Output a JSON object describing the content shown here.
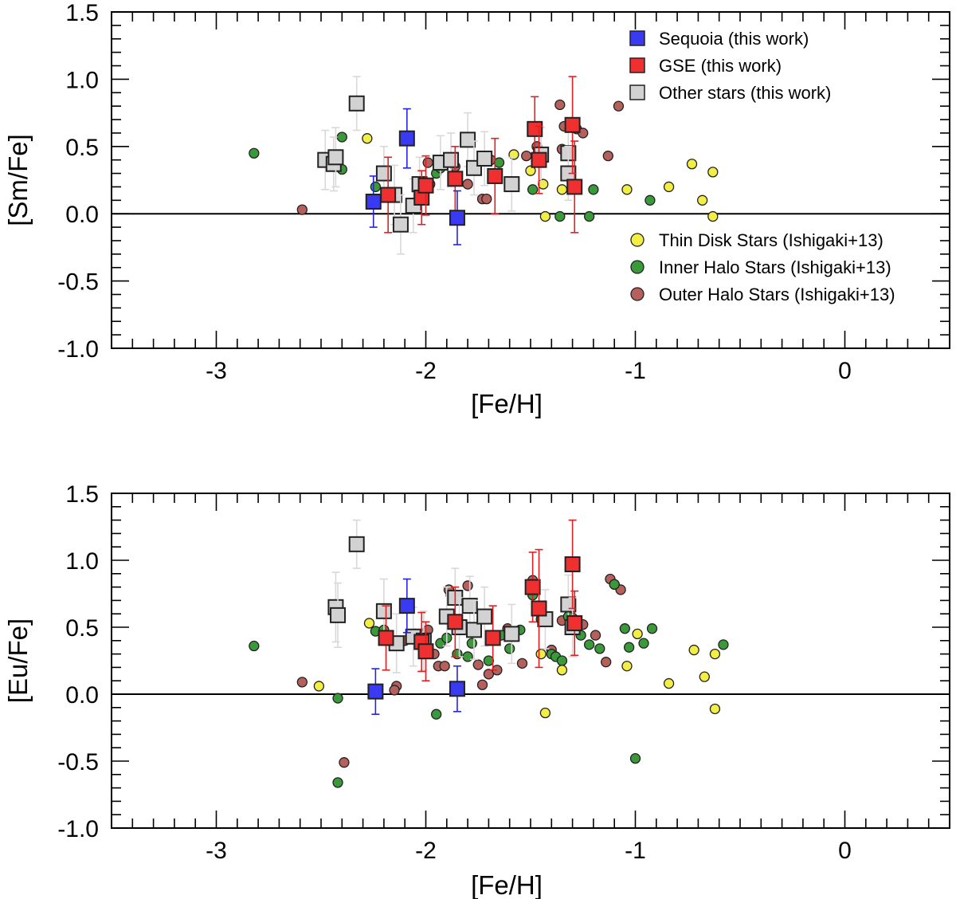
{
  "chart_data": [
    {
      "type": "scatter",
      "xlabel": "[Fe/H]",
      "ylabel": "[Sm/Fe]",
      "xlim": [
        -3.5,
        0.5
      ],
      "ylim": [
        -1.0,
        1.5
      ],
      "xticks": [
        {
          "value": -3,
          "label": "-3"
        },
        {
          "value": -2,
          "label": "-2"
        },
        {
          "value": -1,
          "label": "-1"
        },
        {
          "value": 0,
          "label": "0"
        }
      ],
      "yticks": [
        {
          "value": 1.5,
          "label": "1.5"
        },
        {
          "value": 1.0,
          "label": "1.0"
        },
        {
          "value": 0.5,
          "label": "0.5"
        },
        {
          "value": 0.0,
          "label": "0.0"
        },
        {
          "value": -0.5,
          "label": "-0.5"
        },
        {
          "value": -1.0,
          "label": "-1.0"
        }
      ],
      "reference_line_y": 0.0,
      "legend_upper": {
        "position": "top-right",
        "series": [
          "Sequoia",
          "GSE",
          "Other"
        ]
      },
      "legend_lower": {
        "position": "center-right",
        "series": [
          "Thin",
          "Inner",
          "Outer"
        ]
      },
      "series": [
        {
          "key": "Outer",
          "label": "Outer Halo Stars (Ishigaki+13)",
          "color": "#b5605c",
          "marker": "circle",
          "points": [
            [
              -2.59,
              0.03
            ],
            [
              -1.99,
              0.38
            ],
            [
              -1.98,
              0.22
            ],
            [
              -1.86,
              0.35
            ],
            [
              -1.69,
              0.4
            ],
            [
              -1.52,
              0.43
            ],
            [
              -1.47,
              0.5
            ],
            [
              -1.36,
              0.81
            ],
            [
              -1.35,
              0.48
            ],
            [
              -1.34,
              0.65
            ],
            [
              -1.32,
              0.44
            ],
            [
              -1.28,
              0.63
            ],
            [
              -1.25,
              0.6
            ],
            [
              -1.13,
              0.43
            ],
            [
              -1.08,
              0.8
            ],
            [
              -1.8,
              0.22
            ],
            [
              -1.73,
              0.11
            ],
            [
              -1.71,
              0.11
            ],
            [
              -2.03,
              0.2
            ]
          ]
        },
        {
          "key": "Inner",
          "label": "Inner Halo Stars (Ishigaki+13)",
          "color": "#3a9a3a",
          "marker": "circle",
          "points": [
            [
              -2.82,
              0.45
            ],
            [
              -2.4,
              0.57
            ],
            [
              -2.4,
              0.33
            ],
            [
              -2.24,
              0.2
            ],
            [
              -1.95,
              0.3
            ],
            [
              -1.93,
              0.34
            ],
            [
              -1.65,
              0.38
            ],
            [
              -1.49,
              0.18
            ],
            [
              -1.36,
              -0.02
            ],
            [
              -1.2,
              0.18
            ],
            [
              -1.22,
              -0.02
            ],
            [
              -0.93,
              0.1
            ],
            [
              -1.85,
              0.27
            ],
            [
              -2.04,
              0.17
            ]
          ]
        },
        {
          "key": "Thin",
          "label": "Thin Disk Stars (Ishigaki+13)",
          "color": "#f2ee44",
          "marker": "circle",
          "points": [
            [
              -2.28,
              0.56
            ],
            [
              -1.58,
              0.44
            ],
            [
              -1.5,
              0.32
            ],
            [
              -1.44,
              0.22
            ],
            [
              -1.43,
              -0.02
            ],
            [
              -1.35,
              0.18
            ],
            [
              -1.04,
              0.18
            ],
            [
              -0.84,
              0.2
            ],
            [
              -0.73,
              0.37
            ],
            [
              -0.68,
              0.1
            ],
            [
              -0.63,
              0.31
            ],
            [
              -0.63,
              -0.02
            ]
          ]
        },
        {
          "key": "Other",
          "label": "Other stars (this work)",
          "color": "#d2d2d2",
          "marker": "square",
          "errcolor": "#d8d8d8",
          "points": [
            [
              -2.33,
              0.82,
              0.2
            ],
            [
              -2.48,
              0.4,
              0.22
            ],
            [
              -2.44,
              0.37,
              0.2
            ],
            [
              -2.43,
              0.42,
              0.22
            ],
            [
              -2.2,
              0.3,
              0.2
            ],
            [
              -2.15,
              0.14,
              0.22
            ],
            [
              -2.12,
              -0.08,
              0.22
            ],
            [
              -2.06,
              0.06,
              0.2
            ],
            [
              -2.03,
              0.22,
              0.2
            ],
            [
              -1.93,
              0.38,
              0.2
            ],
            [
              -1.88,
              0.4,
              0.2
            ],
            [
              -1.8,
              0.55,
              0.2
            ],
            [
              -1.77,
              0.34,
              0.2
            ],
            [
              -1.72,
              0.41,
              0.2
            ],
            [
              -1.59,
              0.22,
              0.2
            ],
            [
              -1.45,
              0.44,
              0.2
            ],
            [
              -1.32,
              0.45,
              0.2
            ],
            [
              -1.32,
              0.3,
              0.2
            ]
          ]
        },
        {
          "key": "GSE",
          "label": "GSE (this work)",
          "color": "#f03030",
          "marker": "square",
          "errcolor": "#e02020",
          "points": [
            [
              -2.18,
              0.14,
              0.28
            ],
            [
              -2.02,
              0.12,
              0.2
            ],
            [
              -2.0,
              0.21,
              0.22
            ],
            [
              -1.86,
              0.26,
              0.24
            ],
            [
              -1.67,
              0.28,
              0.28
            ],
            [
              -1.48,
              0.63,
              0.24
            ],
            [
              -1.46,
              0.4,
              0.25
            ],
            [
              -1.3,
              0.66,
              0.36
            ],
            [
              -1.29,
              0.2,
              0.34
            ]
          ]
        },
        {
          "key": "Sequoia",
          "label": "Sequoia (this work)",
          "color": "#3a3af2",
          "marker": "square",
          "errcolor": "#2424e0",
          "points": [
            [
              -2.25,
              0.09,
              0.19
            ],
            [
              -2.09,
              0.56,
              0.22
            ],
            [
              -1.85,
              -0.03,
              0.2
            ]
          ]
        }
      ]
    },
    {
      "type": "scatter",
      "xlabel": "[Fe/H]",
      "ylabel": "[Eu/Fe]",
      "xlim": [
        -3.5,
        0.5
      ],
      "ylim": [
        -1.0,
        1.5
      ],
      "xticks": [
        {
          "value": -3,
          "label": "-3"
        },
        {
          "value": -2,
          "label": "-2"
        },
        {
          "value": -1,
          "label": "-1"
        },
        {
          "value": 0,
          "label": "0"
        }
      ],
      "yticks": [
        {
          "value": 1.5,
          "label": "1.5"
        },
        {
          "value": 1.0,
          "label": "1.0"
        },
        {
          "value": 0.5,
          "label": "0.5"
        },
        {
          "value": 0.0,
          "label": "0.0"
        },
        {
          "value": -0.5,
          "label": "-0.5"
        },
        {
          "value": -1.0,
          "label": "-1.0"
        }
      ],
      "reference_line_y": 0.0,
      "series": [
        {
          "key": "Outer",
          "label": "Outer Halo Stars (Ishigaki+13)",
          "color": "#b5605c",
          "marker": "circle",
          "points": [
            [
              -2.59,
              0.09
            ],
            [
              -2.39,
              -0.51
            ],
            [
              -2.14,
              0.06
            ],
            [
              -2.15,
              0.03
            ],
            [
              -1.99,
              0.48
            ],
            [
              -1.96,
              0.3
            ],
            [
              -1.94,
              0.21
            ],
            [
              -1.91,
              0.21
            ],
            [
              -1.89,
              0.78
            ],
            [
              -1.88,
              0.74
            ],
            [
              -1.8,
              0.81
            ],
            [
              -1.75,
              0.22
            ],
            [
              -1.73,
              0.07
            ],
            [
              -1.7,
              0.15
            ],
            [
              -1.66,
              0.18
            ],
            [
              -1.61,
              0.49
            ],
            [
              -1.58,
              0.46
            ],
            [
              -1.54,
              0.23
            ],
            [
              -1.49,
              0.85
            ],
            [
              -1.4,
              0.33
            ],
            [
              -1.35,
              0.55
            ],
            [
              -1.33,
              0.66
            ],
            [
              -1.3,
              0.57
            ],
            [
              -1.25,
              0.52
            ],
            [
              -1.19,
              0.44
            ],
            [
              -1.14,
              0.24
            ],
            [
              -1.12,
              0.86
            ],
            [
              -1.1,
              0.82
            ],
            [
              -1.07,
              0.78
            ],
            [
              -2.1,
              0.4
            ],
            [
              -2.05,
              0.45
            ]
          ]
        },
        {
          "key": "Inner",
          "label": "Inner Halo Stars (Ishigaki+13)",
          "color": "#3a9a3a",
          "marker": "circle",
          "points": [
            [
              -2.82,
              0.36
            ],
            [
              -2.42,
              -0.03
            ],
            [
              -2.42,
              -0.66
            ],
            [
              -2.24,
              0.47
            ],
            [
              -2.2,
              0.48
            ],
            [
              -2.18,
              0.4
            ],
            [
              -1.95,
              -0.15
            ],
            [
              -1.93,
              0.38
            ],
            [
              -1.9,
              0.42
            ],
            [
              -1.8,
              0.28
            ],
            [
              -1.78,
              0.38
            ],
            [
              -1.64,
              0.44
            ],
            [
              -1.6,
              0.34
            ],
            [
              -1.55,
              0.48
            ],
            [
              -1.49,
              0.74
            ],
            [
              -1.45,
              0.56
            ],
            [
              -1.4,
              0.3
            ],
            [
              -1.38,
              0.28
            ],
            [
              -1.35,
              0.25
            ],
            [
              -1.32,
              0.58
            ],
            [
              -1.26,
              0.44
            ],
            [
              -1.22,
              0.37
            ],
            [
              -1.17,
              0.34
            ],
            [
              -1.1,
              0.82
            ],
            [
              -1.05,
              0.49
            ],
            [
              -1.03,
              0.35
            ],
            [
              -0.96,
              0.38
            ],
            [
              -0.92,
              0.49
            ],
            [
              -0.58,
              0.37
            ],
            [
              -1.0,
              -0.48
            ],
            [
              -1.85,
              0.3
            ],
            [
              -1.7,
              0.25
            ]
          ]
        },
        {
          "key": "Thin",
          "label": "Thin Disk Stars (Ishigaki+13)",
          "color": "#f2ee44",
          "marker": "circle",
          "points": [
            [
              -2.51,
              0.06
            ],
            [
              -2.27,
              0.53
            ],
            [
              -1.45,
              0.3
            ],
            [
              -1.43,
              -0.14
            ],
            [
              -1.35,
              0.18
            ],
            [
              -1.04,
              0.21
            ],
            [
              -0.99,
              0.45
            ],
            [
              -0.84,
              0.08
            ],
            [
              -0.72,
              0.33
            ],
            [
              -0.67,
              0.13
            ],
            [
              -0.62,
              0.3
            ],
            [
              -0.62,
              -0.11
            ]
          ]
        },
        {
          "key": "Other",
          "label": "Other stars (this work)",
          "color": "#d2d2d2",
          "marker": "square",
          "errcolor": "#d8d8d8",
          "points": [
            [
              -2.33,
              1.12,
              0.18
            ],
            [
              -2.43,
              0.65,
              0.26
            ],
            [
              -2.42,
              0.59,
              0.24
            ],
            [
              -2.2,
              0.62,
              0.24
            ],
            [
              -2.14,
              0.38,
              0.22
            ],
            [
              -2.06,
              0.43,
              0.22
            ],
            [
              -2.01,
              0.4,
              0.22
            ],
            [
              -1.9,
              0.58,
              0.22
            ],
            [
              -1.86,
              0.72,
              0.22
            ],
            [
              -1.84,
              0.5,
              0.22
            ],
            [
              -1.79,
              0.66,
              0.22
            ],
            [
              -1.77,
              0.48,
              0.22
            ],
            [
              -1.72,
              0.58,
              0.22
            ],
            [
              -1.59,
              0.45,
              0.22
            ],
            [
              -1.43,
              0.56,
              0.22
            ],
            [
              -1.32,
              0.67,
              0.22
            ],
            [
              -1.3,
              0.5,
              0.22
            ]
          ]
        },
        {
          "key": "GSE",
          "label": "GSE (this work)",
          "color": "#f03030",
          "marker": "square",
          "errcolor": "#e02020",
          "points": [
            [
              -2.19,
              0.42,
              0.24
            ],
            [
              -2.02,
              0.39,
              0.22
            ],
            [
              -2.0,
              0.32,
              0.22
            ],
            [
              -1.86,
              0.54,
              0.26
            ],
            [
              -1.68,
              0.42,
              0.24
            ],
            [
              -1.49,
              0.8,
              0.26
            ],
            [
              -1.46,
              0.64,
              0.44
            ],
            [
              -1.3,
              0.97,
              0.33
            ],
            [
              -1.29,
              0.53,
              0.24
            ]
          ]
        },
        {
          "key": "Sequoia",
          "label": "Sequoia (this work)",
          "color": "#3a3af2",
          "marker": "square",
          "errcolor": "#2424e0",
          "points": [
            [
              -2.24,
              0.02,
              0.17
            ],
            [
              -2.09,
              0.66,
              0.2
            ],
            [
              -1.85,
              0.04,
              0.17
            ]
          ]
        }
      ]
    }
  ]
}
